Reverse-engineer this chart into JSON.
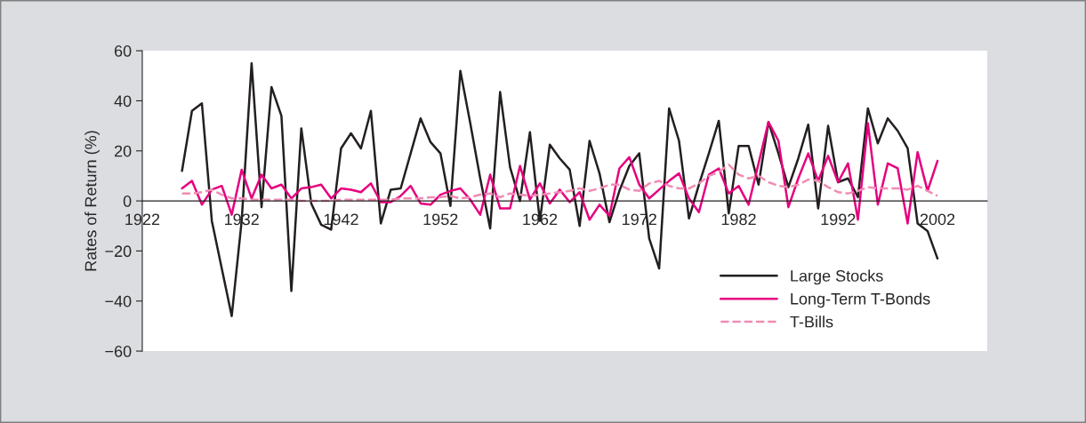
{
  "chart_data": {
    "type": "line",
    "ylabel": "Rates of Return (%)",
    "x": [
      1926,
      1927,
      1928,
      1929,
      1930,
      1931,
      1932,
      1933,
      1934,
      1935,
      1936,
      1937,
      1938,
      1939,
      1940,
      1941,
      1942,
      1943,
      1944,
      1945,
      1946,
      1947,
      1948,
      1949,
      1950,
      1951,
      1952,
      1953,
      1954,
      1955,
      1956,
      1957,
      1958,
      1959,
      1960,
      1961,
      1962,
      1963,
      1964,
      1965,
      1966,
      1967,
      1968,
      1969,
      1970,
      1971,
      1972,
      1973,
      1974,
      1975,
      1976,
      1977,
      1978,
      1979,
      1980,
      1981,
      1982,
      1983,
      1984,
      1985,
      1986,
      1987,
      1988,
      1989,
      1990,
      1991,
      1992,
      1993,
      1994,
      1995,
      1996,
      1997,
      1998,
      1999,
      2000,
      2001,
      2002
    ],
    "series": [
      {
        "name": "Large Stocks",
        "color": "#231f20",
        "line_style": "solid",
        "values": [
          12,
          36,
          39,
          -8,
          -27,
          -46,
          -8,
          55,
          -2.5,
          45.5,
          34,
          -36,
          29,
          -1,
          -9.5,
          -11.5,
          21,
          27,
          21,
          36,
          -9,
          4.5,
          5,
          19,
          33,
          23.5,
          19,
          -2,
          52,
          31,
          9,
          -11,
          43.5,
          13.5,
          0,
          27.5,
          -8,
          22.5,
          17,
          12.5,
          -10,
          24,
          11,
          -8.5,
          4,
          14,
          19,
          -15,
          -27,
          37,
          24,
          -7,
          6.5,
          19,
          32,
          -5,
          22,
          22,
          6.5,
          31.5,
          19,
          5.5,
          17,
          30.5,
          -3,
          30,
          7.5,
          9,
          1.5,
          37,
          23,
          33,
          28,
          21,
          -9,
          -12,
          -23
        ]
      },
      {
        "name": "Long-Term T-Bonds",
        "color": "#e6007e",
        "line_style": "solid",
        "values": [
          5,
          8,
          -1.5,
          4.5,
          6,
          -5.5,
          12.5,
          1,
          10.5,
          5,
          6.5,
          1,
          5,
          5.5,
          6.5,
          1,
          5,
          4.5,
          3.5,
          7,
          -0.5,
          -0.5,
          2,
          6,
          -1,
          -1.5,
          2.5,
          4,
          5,
          0.5,
          -5.5,
          10.5,
          -3,
          -3,
          14,
          0.5,
          7,
          -1,
          4.5,
          -0.5,
          3.5,
          -7.5,
          -1.5,
          -6,
          13,
          17.5,
          6.5,
          1,
          4.5,
          8,
          11,
          1,
          -4.5,
          10.5,
          13,
          3,
          6,
          -1.5,
          15,
          31.5,
          24,
          -2.5,
          9,
          19,
          8,
          18,
          7.5,
          15,
          -7.5,
          31,
          -1.5,
          15,
          13,
          -9,
          19.5,
          4,
          16
        ]
      },
      {
        "name": "T-Bills",
        "color": "#f08cb4",
        "line_style": "dashed",
        "values": [
          3,
          3,
          3.5,
          4.5,
          2.5,
          1,
          1,
          0.5,
          0.5,
          0.5,
          0.5,
          0.5,
          0,
          0,
          0,
          0,
          0.5,
          0.5,
          0.5,
          0.5,
          0.5,
          0.5,
          1,
          1,
          1,
          1.5,
          1.5,
          2,
          1,
          1.5,
          2.5,
          3,
          1.5,
          3,
          2.5,
          2,
          2.5,
          3,
          3.5,
          4,
          5,
          4,
          5,
          6.5,
          6.5,
          4.5,
          4,
          7,
          8,
          6,
          5,
          5,
          7,
          10,
          11.5,
          14.5,
          10.5,
          9,
          10,
          7.5,
          6,
          5.5,
          6.5,
          8.5,
          8,
          5.5,
          3.5,
          3,
          4,
          5.5,
          5,
          5,
          5,
          4.5,
          6,
          4,
          2
        ]
      }
    ],
    "ylim": [
      -60,
      60
    ],
    "yticks": [
      {
        "value": -60,
        "label": "−60"
      },
      {
        "value": -40,
        "label": "−40"
      },
      {
        "value": -20,
        "label": "−20"
      },
      0,
      20,
      40,
      60
    ],
    "xlim": [
      1922,
      2007
    ],
    "xticks": [
      1922,
      1932,
      1942,
      1952,
      1962,
      1972,
      1982,
      1992,
      2002
    ],
    "grid": false,
    "legend": "bottom right",
    "marker": "none"
  }
}
